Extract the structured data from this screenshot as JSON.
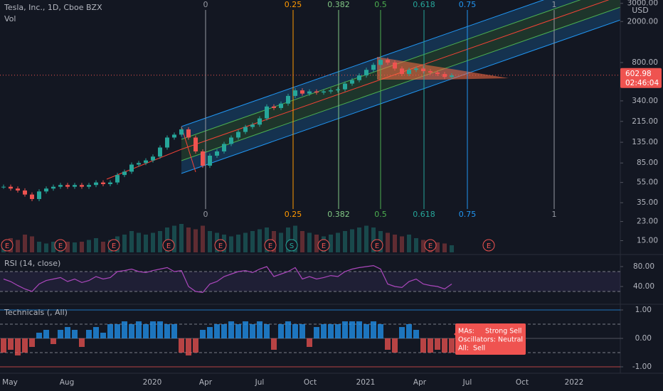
{
  "header": {
    "symbol": "Tesla, Inc., 1D, Cboe BZX",
    "volume_label": "Vol",
    "currency": "USD"
  },
  "price": {
    "last": {
      "value": 602.98,
      "label": "602.98"
    },
    "countdown": "02:46:04",
    "ticks": [
      {
        "value": 3000,
        "label": "3000.00"
      },
      {
        "value": 2000,
        "label": "2000.00"
      },
      {
        "value": 800,
        "label": "800.00"
      },
      {
        "value": 340,
        "label": "340.00"
      },
      {
        "value": 215,
        "label": "215.00"
      },
      {
        "value": 135,
        "label": "135.00"
      },
      {
        "value": 85,
        "label": "85.00"
      },
      {
        "value": 55,
        "label": "55.00"
      },
      {
        "value": 35,
        "label": "35.00"
      },
      {
        "value": 23,
        "label": "23.00"
      },
      {
        "value": 15,
        "label": "15.00"
      }
    ],
    "closes": [
      50,
      48,
      46,
      42,
      38,
      45,
      48,
      50,
      52,
      50,
      52,
      50,
      52,
      55,
      53,
      55,
      65,
      70,
      82,
      85,
      90,
      98,
      120,
      150,
      160,
      180,
      150,
      110,
      80,
      100,
      110,
      130,
      150,
      170,
      190,
      200,
      230,
      300,
      290,
      320,
      380,
      430,
      400,
      420,
      410,
      420,
      430,
      440,
      500,
      540,
      600,
      680,
      760,
      850,
      800,
      700,
      620,
      680,
      700,
      660,
      640,
      620,
      580,
      600
    ]
  },
  "volume": {
    "values": [
      30,
      40,
      35,
      50,
      45,
      30,
      25,
      30,
      35,
      30,
      28,
      30,
      35,
      40,
      30,
      35,
      45,
      50,
      60,
      55,
      50,
      55,
      60,
      70,
      75,
      80,
      70,
      65,
      75,
      60,
      55,
      50,
      45,
      50,
      55,
      60,
      65,
      70,
      60,
      55,
      70,
      75,
      60,
      55,
      50,
      45,
      50,
      55,
      60,
      65,
      70,
      75,
      70,
      60,
      55,
      50,
      45,
      50,
      40,
      35,
      30,
      28,
      25,
      20
    ]
  },
  "fib_levels": [
    "0",
    "0.25",
    "0.382",
    "0.5",
    "0.618",
    "0.75",
    "1"
  ],
  "events": [
    "E",
    "E",
    "E",
    "E",
    "E",
    "E",
    "S",
    "E",
    "E",
    "E",
    "E"
  ],
  "rsi": {
    "title": "RSI (14, close)",
    "ticks": [
      {
        "value": 80,
        "label": "80.00"
      },
      {
        "value": 40,
        "label": "40.00"
      }
    ],
    "values": [
      55,
      50,
      42,
      35,
      30,
      45,
      52,
      55,
      58,
      50,
      55,
      48,
      52,
      60,
      55,
      58,
      70,
      72,
      75,
      70,
      68,
      72,
      75,
      78,
      70,
      72,
      40,
      30,
      28,
      45,
      50,
      60,
      65,
      70,
      72,
      68,
      75,
      80,
      60,
      65,
      70,
      78,
      55,
      60,
      55,
      58,
      62,
      60,
      70,
      75,
      78,
      80,
      82,
      75,
      45,
      40,
      38,
      50,
      55,
      45,
      42,
      40,
      35,
      45
    ]
  },
  "technicals": {
    "title": "Technicals (, All)",
    "ticks": [
      {
        "value": 1,
        "label": "1.00"
      },
      {
        "value": 0,
        "label": "0.00"
      },
      {
        "value": -1,
        "label": "-1.00"
      }
    ],
    "values": [
      -0.5,
      -0.4,
      -0.6,
      -0.5,
      -0.3,
      0.2,
      0.3,
      -0.2,
      0.3,
      0.4,
      0.3,
      -0.3,
      0.3,
      0.4,
      0.2,
      0.5,
      0.5,
      0.6,
      0.5,
      0.6,
      0.5,
      0.6,
      0.6,
      0.5,
      0.5,
      -0.5,
      -0.6,
      -0.5,
      0.3,
      0.4,
      0.5,
      0.5,
      0.6,
      0.5,
      0.6,
      0.5,
      0.6,
      0.5,
      -0.4,
      0.5,
      0.6,
      0.5,
      0.5,
      -0.3,
      0.4,
      0.5,
      0.5,
      0.5,
      0.6,
      0.6,
      0.6,
      0.5,
      0.6,
      0.5,
      -0.4,
      -0.5,
      0.4,
      0.5,
      0.3,
      -0.5,
      -0.5,
      -0.4,
      -0.5,
      -0.5
    ],
    "summary": [
      "MAs:     Strong Sell",
      "Oscillators: Neutral",
      "All:  Sell"
    ]
  },
  "time_axis": [
    "May",
    "Aug",
    "2020",
    "Apr",
    "Jul",
    "Oct",
    "2021",
    "Apr",
    "Jul",
    "Oct",
    "2022"
  ]
}
